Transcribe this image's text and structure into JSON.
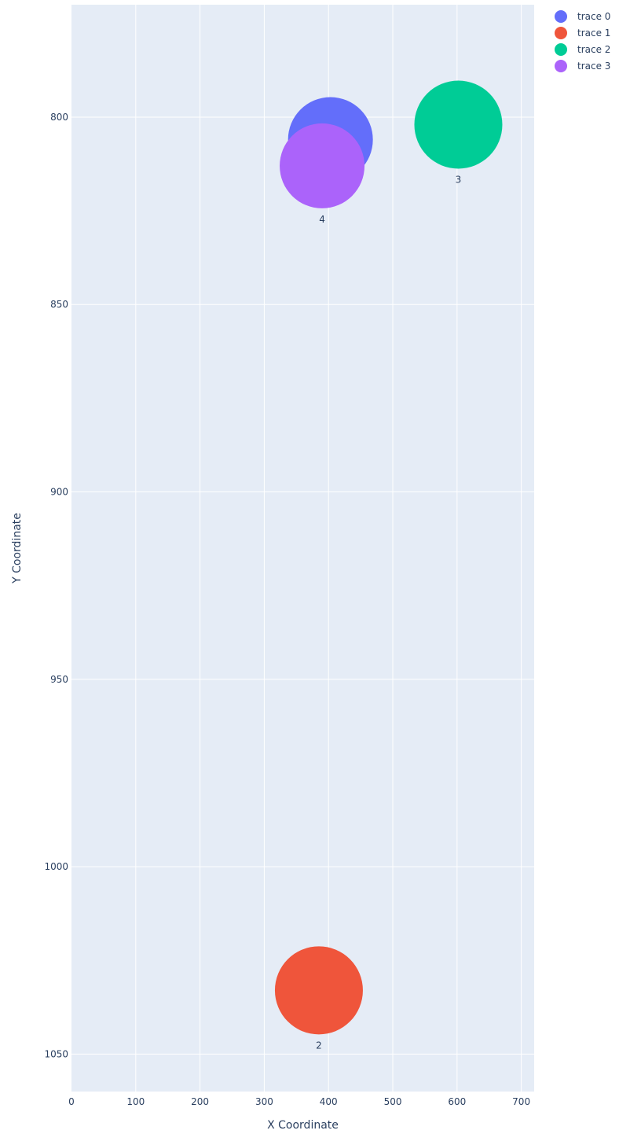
{
  "chart_data": {
    "type": "scatter",
    "title": "",
    "xlabel": "X Coordinate",
    "ylabel": "Y Coordinate",
    "xlim": [
      0,
      720
    ],
    "ylim": [
      1060,
      770
    ],
    "y_reversed": true,
    "x_ticks": [
      0,
      100,
      200,
      300,
      400,
      500,
      600,
      700
    ],
    "y_ticks": [
      800,
      850,
      900,
      950,
      1000,
      1050
    ],
    "grid": true,
    "plot_background": "#e5ecf6",
    "legend_position": "top-right",
    "series": [
      {
        "name": "trace 0",
        "color": "#636efa",
        "x": 403,
        "y": 806,
        "text": ""
      },
      {
        "name": "trace 1",
        "color": "#ef553b",
        "x": 385,
        "y": 1033,
        "text": "2"
      },
      {
        "name": "trace 2",
        "color": "#00cc96",
        "x": 602,
        "y": 802,
        "text": "3"
      },
      {
        "name": "trace 3",
        "color": "#ab63fa",
        "x": 390,
        "y": 813,
        "text": "4"
      }
    ]
  }
}
